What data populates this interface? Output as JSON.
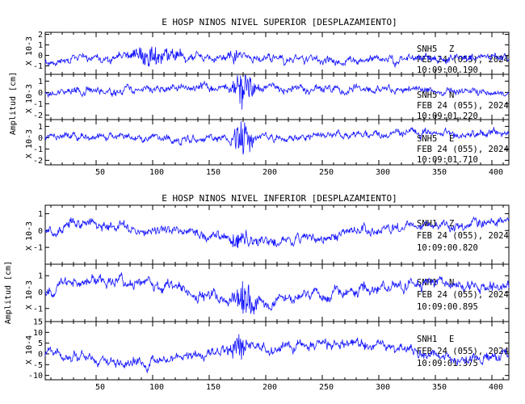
{
  "figure": {
    "background": "#ffffff",
    "trace_color": "#1414ff",
    "axis_color": "#000000"
  },
  "chart_data": [
    {
      "type": "line",
      "title": "E HOSP NINOS NIVEL SUPERIOR [DESPLAZAMIENTO]",
      "ylabel": "Amplitud [cm]",
      "x_ticks": [
        50,
        100,
        150,
        200,
        250,
        300,
        350,
        400
      ],
      "xlim": [
        5,
        415
      ],
      "panels": [
        {
          "station": "SNH5",
          "component": "Z",
          "date": "FEB 24 (055), 2024",
          "time": "10:09:00.190",
          "scale_label": "X 10-3",
          "ylim": [
            -1.8,
            2.2
          ],
          "y_ticks": [
            -1,
            0,
            1,
            2
          ],
          "seed": 11,
          "noise": 0.45,
          "baseline": -0.2,
          "bursts": [
            {
              "x": 100,
              "w": 30,
              "amp": 0.9
            },
            {
              "x": 175,
              "w": 15,
              "amp": 0.5
            }
          ],
          "drift": [
            {
              "x": 5,
              "y": -0.3
            },
            {
              "x": 120,
              "y": 0.2
            },
            {
              "x": 260,
              "y": -0.3
            },
            {
              "x": 415,
              "y": 0.1
            }
          ]
        },
        {
          "station": "SNH5",
          "component": "N",
          "date": "FEB 24 (055), 2024",
          "time": "10:09:01.220",
          "scale_label": "X 10-3",
          "ylim": [
            -2.4,
            1.6
          ],
          "y_ticks": [
            -2,
            -1,
            0,
            1
          ],
          "seed": 23,
          "noise": 0.4,
          "baseline": 0.0,
          "bursts": [
            {
              "x": 180,
              "w": 12,
              "amp": 2.0
            }
          ],
          "drift": [
            {
              "x": 5,
              "y": 0.0
            },
            {
              "x": 150,
              "y": 0.4
            },
            {
              "x": 300,
              "y": 0.3
            },
            {
              "x": 415,
              "y": 0.0
            }
          ]
        },
        {
          "station": "SNH5",
          "component": "E",
          "date": "FEB 24 (055), 2024",
          "time": "10:09:01.710",
          "scale_label": "X 10-3",
          "ylim": [
            -2.4,
            1.6
          ],
          "y_ticks": [
            -2,
            -1,
            0,
            1
          ],
          "seed": 37,
          "noise": 0.4,
          "baseline": 0.0,
          "bursts": [
            {
              "x": 180,
              "w": 12,
              "amp": 1.8
            }
          ],
          "drift": [
            {
              "x": 5,
              "y": 0.2
            },
            {
              "x": 150,
              "y": -0.2
            },
            {
              "x": 330,
              "y": 0.4
            },
            {
              "x": 415,
              "y": 0.4
            }
          ]
        }
      ]
    },
    {
      "type": "line",
      "title": "E HOSP NINOS NIVEL INFERIOR [DESPLAZAMIENTO]",
      "ylabel": "Amplitud [cm]",
      "x_ticks": [
        50,
        100,
        150,
        200,
        250,
        300,
        350,
        400
      ],
      "xlim": [
        5,
        415
      ],
      "panels": [
        {
          "station": "SNH1",
          "component": "Z",
          "date": "FEB 24 (055), 2024",
          "time": "10:09:00.820",
          "scale_label": "X 10-3",
          "ylim": [
            -2.0,
            1.5
          ],
          "y_ticks": [
            -1,
            0,
            1
          ],
          "seed": 51,
          "noise": 0.35,
          "baseline": 0.0,
          "bursts": [
            {
              "x": 178,
              "w": 20,
              "amp": 0.5
            }
          ],
          "drift": [
            {
              "x": 5,
              "y": 0.0
            },
            {
              "x": 40,
              "y": 0.5
            },
            {
              "x": 200,
              "y": -0.7
            },
            {
              "x": 330,
              "y": 0.2
            },
            {
              "x": 415,
              "y": 0.5
            }
          ]
        },
        {
          "station": "SNH1",
          "component": "N",
          "date": "FEB 24 (055), 2024",
          "time": "10:09:00.895",
          "scale_label": "X 10-3",
          "ylim": [
            -1.8,
            1.7
          ],
          "y_ticks": [
            -1,
            0,
            1
          ],
          "seed": 67,
          "noise": 0.4,
          "baseline": 0.0,
          "bursts": [
            {
              "x": 182,
              "w": 12,
              "amp": 1.1
            }
          ],
          "drift": [
            {
              "x": 5,
              "y": 0.2
            },
            {
              "x": 60,
              "y": 0.8
            },
            {
              "x": 200,
              "y": -0.6
            },
            {
              "x": 330,
              "y": 0.5
            },
            {
              "x": 415,
              "y": 0.3
            }
          ]
        },
        {
          "station": "SNH1",
          "component": "E",
          "date": "FEB 24 (055), 2024",
          "time": "10:09:01.375",
          "scale_label": "X 10-4",
          "ylim": [
            -12,
            15
          ],
          "y_ticks": [
            -10,
            -5,
            0,
            5,
            10,
            15
          ],
          "seed": 89,
          "noise": 2.8,
          "baseline": 0.0,
          "bursts": [
            {
              "x": 176,
              "w": 10,
              "amp": 6.0
            }
          ],
          "drift": [
            {
              "x": 5,
              "y": 0.0
            },
            {
              "x": 90,
              "y": -5.0
            },
            {
              "x": 180,
              "y": 3.0
            },
            {
              "x": 300,
              "y": 4.0
            },
            {
              "x": 370,
              "y": -3.0
            },
            {
              "x": 415,
              "y": 0.0
            }
          ]
        }
      ]
    }
  ]
}
